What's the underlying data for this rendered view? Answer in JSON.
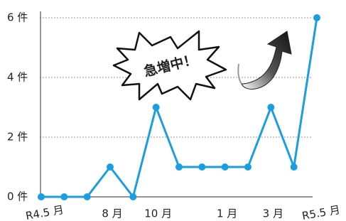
{
  "chart_data": {
    "type": "line",
    "annotation": "急増中！",
    "categories": [
      "R4.5 月",
      null,
      null,
      "8 月",
      null,
      "10 月",
      null,
      null,
      "1 月",
      null,
      "3 月",
      null,
      "R5.5 月"
    ],
    "series": [
      {
        "name": null,
        "color": "#1a9ee0",
        "values": [
          0,
          0,
          0,
          1,
          0,
          3,
          1,
          1,
          1,
          1,
          3,
          1,
          6
        ]
      }
    ],
    "ylim": [
      0,
      6
    ],
    "yticks": [
      {
        "value": 0,
        "label": "0 件"
      },
      {
        "value": 2,
        "label": "2 件"
      },
      {
        "value": 4,
        "label": "4 件"
      },
      {
        "value": 6,
        "label": "6 件"
      }
    ],
    "grid": true
  }
}
